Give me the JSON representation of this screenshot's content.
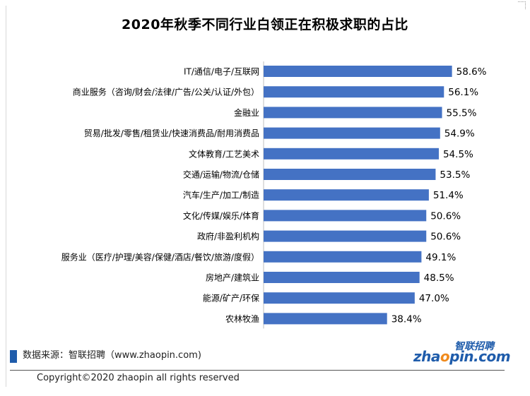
{
  "colors": {
    "bar": "#4472c4",
    "text": "#000000",
    "brand": "#1f5cab",
    "brand_accent": "#f08a1c"
  },
  "chart_data": {
    "type": "bar",
    "orientation": "horizontal",
    "title": "2020年秋季不同行业白领正在积极求职的占比",
    "categories": [
      "IT/通信/电子/互联网",
      "商业服务（咨询/财会/法律/广告/公关/认证/外包）",
      "金融业",
      "贸易/批发/零售/租赁业/快速消费品/耐用消费品",
      "文体教育/工艺美术",
      "交通/运输/物流/仓储",
      "汽车/生产/加工/制造",
      "文化/传媒/娱乐/体育",
      "政府/非盈利机构",
      "服务业（医疗/护理/美容/保健/酒店/餐饮/旅游/度假）",
      "房地产/建筑业",
      "能源/矿产/环保",
      "农林牧渔"
    ],
    "values": [
      58.6,
      56.1,
      55.5,
      54.9,
      54.5,
      53.5,
      51.4,
      50.6,
      50.6,
      49.1,
      48.5,
      47.0,
      38.4
    ],
    "value_labels": [
      "58.6%",
      "56.1%",
      "55.5%",
      "54.9%",
      "54.5%",
      "53.5%",
      "51.4%",
      "50.6%",
      "50.6%",
      "49.1%",
      "48.5%",
      "47.0%",
      "38.4%"
    ],
    "grid": false,
    "legend": "none"
  },
  "footer": {
    "source": "数据来源：智联招聘（www.zhaopin.com)",
    "copyright": "Copyright©2020 zhaopin all rights reserved"
  },
  "logo": {
    "top_text": "智联招聘",
    "main_prefix": "zha",
    "main_accent": "o",
    "main_suffix": "pin.com"
  }
}
